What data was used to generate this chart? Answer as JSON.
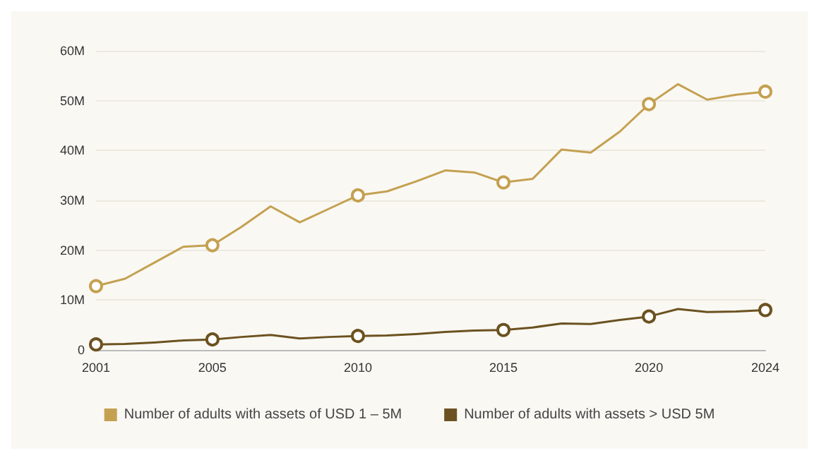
{
  "chart_data": {
    "type": "line",
    "x": [
      2001,
      2002,
      2003,
      2004,
      2005,
      2006,
      2007,
      2008,
      2009,
      2010,
      2011,
      2012,
      2013,
      2014,
      2015,
      2016,
      2017,
      2018,
      2019,
      2020,
      2021,
      2022,
      2023,
      2024
    ],
    "series": [
      {
        "name": "Number of adults with assets of USD 1 – 5M",
        "color": "#c4a151",
        "values": [
          12.8,
          14.3,
          17.5,
          20.7,
          21,
          24.7,
          28.8,
          25.6,
          28.3,
          31,
          31.8,
          33.8,
          36,
          35.6,
          33.6,
          34.3,
          40.2,
          39.6,
          43.8,
          49.3,
          53.3,
          50.2,
          51.2,
          51.8
        ]
      },
      {
        "name": "Number of adults with assets > USD 5M",
        "color": "#6b5220",
        "values": [
          1.1,
          1.2,
          1.5,
          1.9,
          2.1,
          2.6,
          3,
          2.3,
          2.6,
          2.8,
          2.9,
          3.2,
          3.6,
          3.9,
          4,
          4.5,
          5.3,
          5.2,
          6,
          6.7,
          8.2,
          7.6,
          7.7,
          8
        ]
      }
    ],
    "xlim": [
      2001,
      2024
    ],
    "xticks": [
      2001,
      2005,
      2010,
      2015,
      2020,
      2024
    ],
    "ylim": [
      0,
      60
    ],
    "yticks": [
      0,
      {
        "value": 10,
        "label": "10M"
      },
      {
        "value": 20,
        "label": "20M"
      },
      {
        "value": 30,
        "label": "30M"
      },
      {
        "value": 40,
        "label": "40M"
      },
      {
        "value": 50,
        "label": "50M"
      },
      {
        "value": 60,
        "label": "60M"
      }
    ],
    "grid": "y",
    "legend": "bottom",
    "line_style": "solid"
  }
}
